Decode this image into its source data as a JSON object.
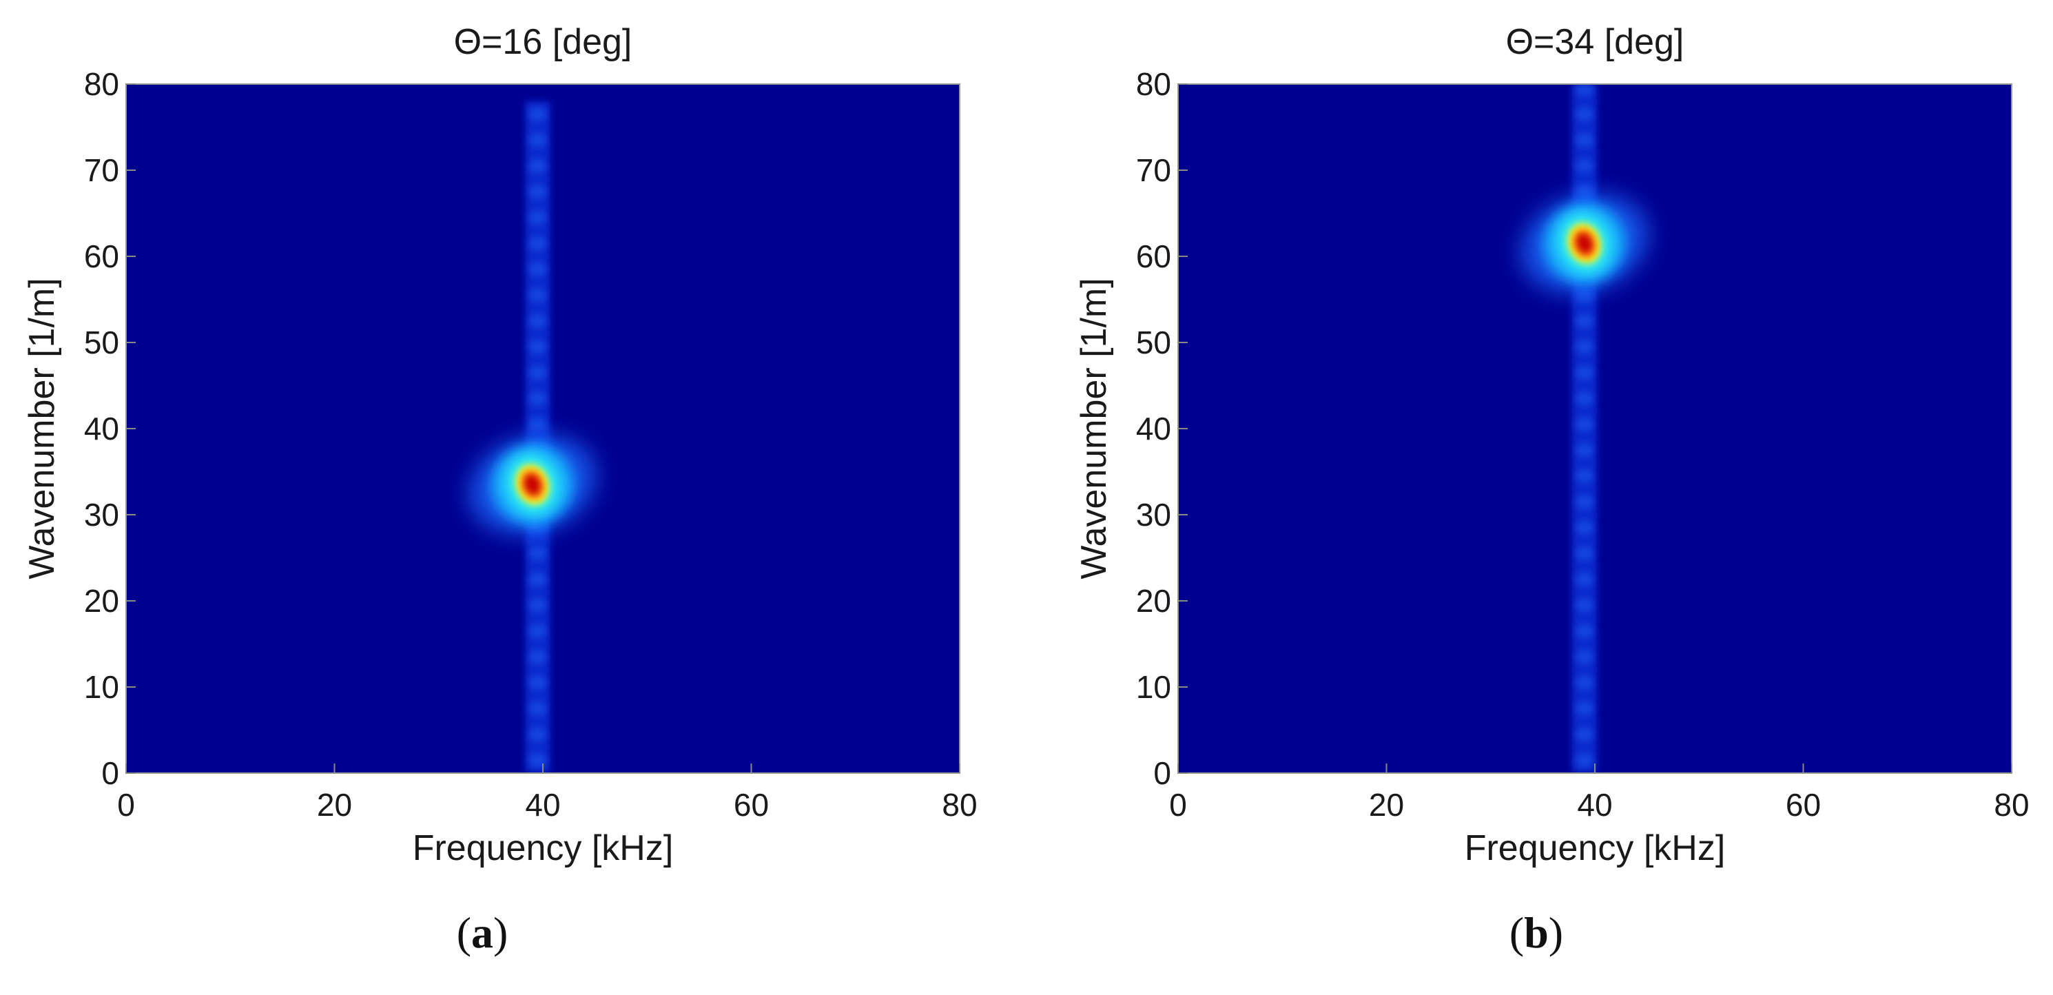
{
  "colors": {
    "colormap": "jet",
    "background_low": "#00008F"
  },
  "chart_data": [
    {
      "type": "heatmap",
      "panel_label": "a",
      "title": "Θ=16 [deg]",
      "xlabel": "Frequency [kHz]",
      "ylabel": "Wavenumber [1/m]",
      "xlim": [
        0,
        80
      ],
      "ylim": [
        0,
        80
      ],
      "xticks": [
        0,
        20,
        40,
        60,
        80
      ],
      "yticks": [
        0,
        10,
        20,
        30,
        40,
        50,
        60,
        70,
        80
      ],
      "ridge_frequency": 39.5,
      "ridge_extent": [
        0,
        78
      ],
      "peak": {
        "frequency": 39,
        "wavenumber": 33.5,
        "intensity": 1.0
      }
    },
    {
      "type": "heatmap",
      "panel_label": "b",
      "title": "Θ=34 [deg]",
      "xlabel": "Frequency [kHz]",
      "ylabel": "Wavenumber [1/m]",
      "xlim": [
        0,
        80
      ],
      "ylim": [
        0,
        80
      ],
      "xticks": [
        0,
        20,
        40,
        60,
        80
      ],
      "yticks": [
        0,
        10,
        20,
        30,
        40,
        50,
        60,
        70,
        80
      ],
      "ridge_frequency": 39,
      "ridge_extent": [
        0,
        80
      ],
      "peak": {
        "frequency": 39,
        "wavenumber": 61.5,
        "intensity": 1.0
      }
    }
  ]
}
